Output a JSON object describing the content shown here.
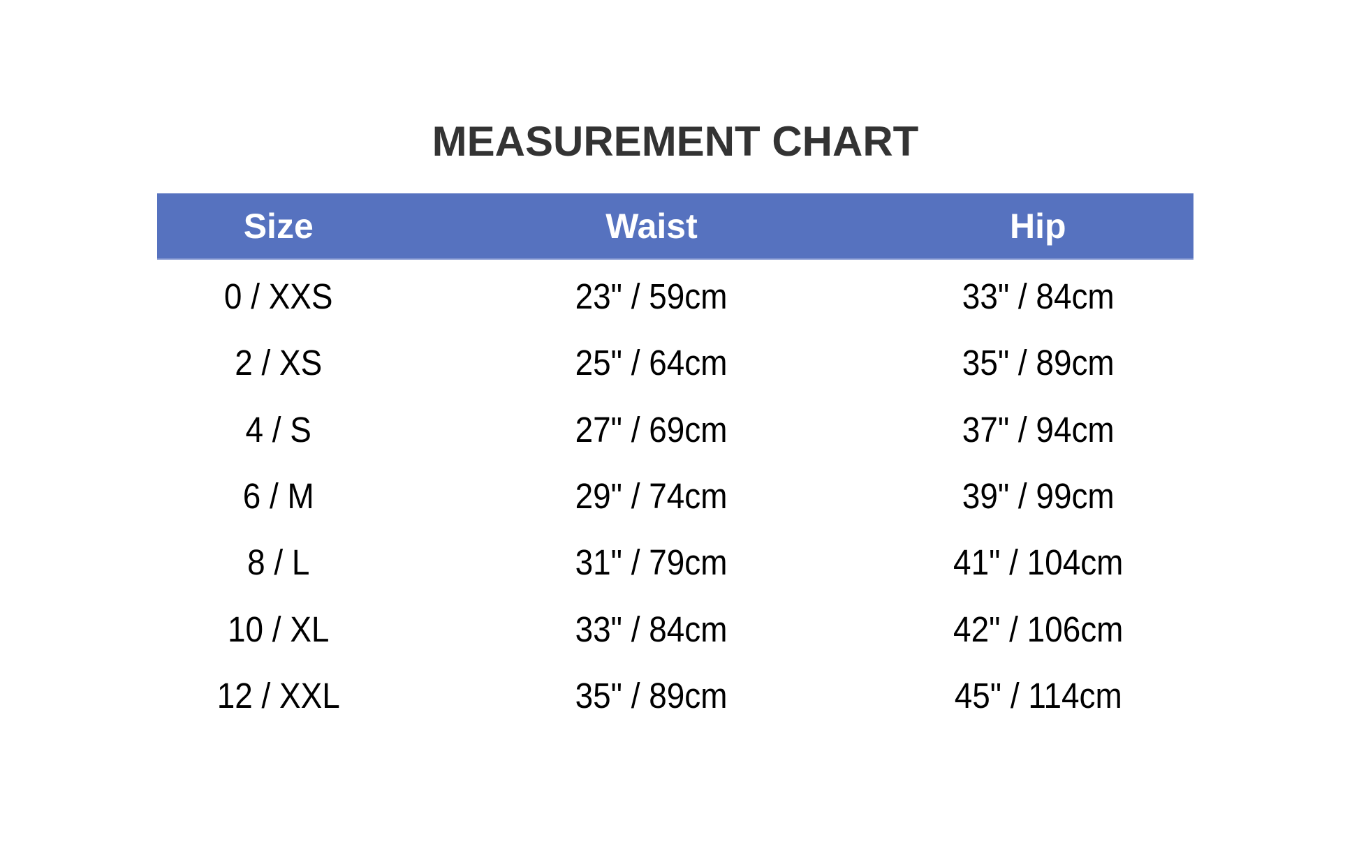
{
  "title": "MEASUREMENT CHART",
  "colors": {
    "header_bg": "#5672bf",
    "header_text": "#ffffff",
    "title": "#333333"
  },
  "table": {
    "headers": [
      "Size",
      "Waist",
      "Hip"
    ],
    "rows": [
      [
        "0 / XXS",
        "23\" / 59cm",
        "33\" / 84cm"
      ],
      [
        "2 / XS",
        "25\" / 64cm",
        "35\" / 89cm"
      ],
      [
        "4 / S",
        "27\" / 69cm",
        "37\" / 94cm"
      ],
      [
        "6 / M",
        "29\" / 74cm",
        "39\" / 99cm"
      ],
      [
        "8 / L",
        "31\" / 79cm",
        "41\" / 104cm"
      ],
      [
        "10 / XL",
        "33\" / 84cm",
        "42\" / 106cm"
      ],
      [
        "12 / XXL",
        "35\" / 89cm",
        "45\" / 114cm"
      ]
    ]
  }
}
